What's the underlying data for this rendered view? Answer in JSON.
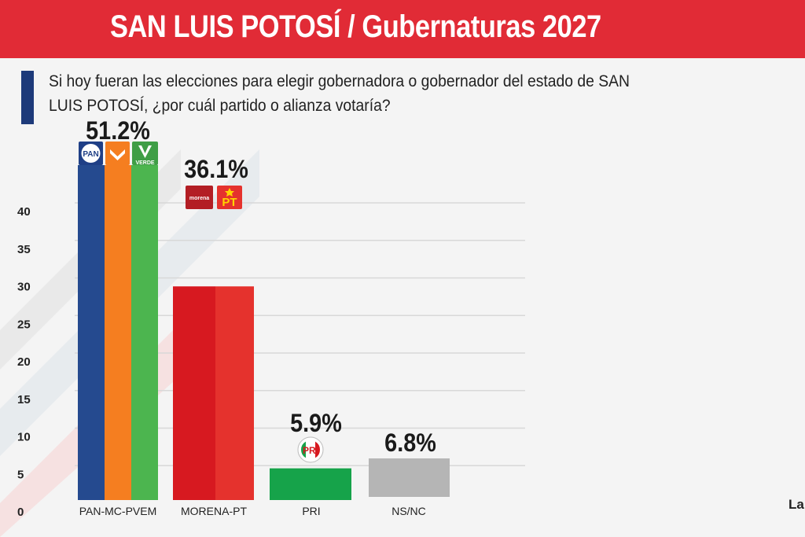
{
  "header": {
    "title_main": "SAN LUIS POTOSÍ",
    "title_rest": " / Gubernaturas 2027"
  },
  "question": "Si hoy fueran las elecciones para elegir gobernadora o gobernador del estado de SAN LUIS POTOSÍ, ¿por cuál partido o alianza votaría?",
  "footer_tag": "La",
  "colors": {
    "header": "#e12b36",
    "accent": "#1d3a7a",
    "pan": "#254a8f",
    "mc": "#f57e20",
    "pvem": "#4cb54f",
    "morena": "#d71920",
    "pt": "#e5322d",
    "pri": "#16a34a",
    "nsnc": "#b5b5b5"
  },
  "logos": [
    {
      "name": "pan-logo-icon",
      "text": "PAN"
    },
    {
      "name": "mc-logo-icon",
      "text": ""
    },
    {
      "name": "verde-logo-icon",
      "text": "VERDE"
    },
    {
      "name": "morena-logo-icon",
      "text": "morena"
    },
    {
      "name": "pt-logo-icon",
      "text": "PT"
    },
    {
      "name": "pri-logo-icon",
      "text": "PRI"
    }
  ],
  "chart_data": {
    "type": "bar",
    "title": "",
    "xlabel": "",
    "ylabel": "",
    "ylim": [
      0,
      40
    ],
    "yticks": [
      0,
      5,
      10,
      15,
      20,
      25,
      30,
      35,
      40
    ],
    "categories": [
      "PAN-MC-PVEM",
      "MORENA-PT",
      "PRI",
      "NS/NC"
    ],
    "values": [
      51.2,
      36.1,
      5.9,
      6.8
    ],
    "data_labels": [
      "51.2%",
      "36.1%",
      "5.9%",
      "6.8%"
    ],
    "grid": true
  }
}
